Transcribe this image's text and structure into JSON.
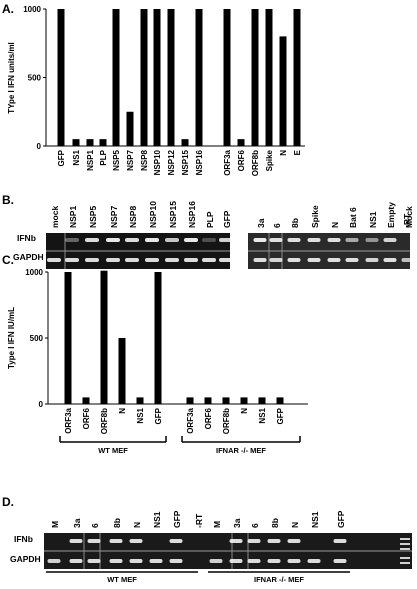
{
  "panels": {
    "A": {
      "label": "A.",
      "chart_data": {
        "type": "bar",
        "ylabel": "TYpe I IFN units/ml",
        "ylim": [
          0,
          1000
        ],
        "yticks": [
          "0",
          "500",
          "1000"
        ],
        "categories": [
          "GFP",
          "NS1",
          "NSP1",
          "PLP",
          "NSP5",
          "NSP7",
          "NSP8",
          "NSP10",
          "NSP12",
          "NSP15",
          "NSP16",
          "ORF3a",
          "ORF6",
          "ORF8b",
          "Spike",
          "N",
          "E"
        ],
        "values": [
          1000,
          50,
          50,
          50,
          1000,
          250,
          1000,
          1000,
          1000,
          50,
          1000,
          1000,
          50,
          1000,
          1000,
          800,
          1000
        ]
      }
    },
    "B": {
      "label": "B.",
      "rows": [
        "IFNb",
        "GAPDH"
      ],
      "left_lanes": [
        "mock",
        "NSP1",
        "NSP5",
        "NSP7",
        "NSP8",
        "NSP10",
        "NSP15",
        "NSP16",
        "PLP",
        "GFP"
      ],
      "right_lanes": [
        "3a",
        "6",
        "8b",
        "Spike",
        "N",
        "Bat 6",
        "NS1",
        "Empty",
        "Mock",
        "-RT"
      ]
    },
    "C": {
      "label": "C.",
      "chart_data": {
        "type": "bar",
        "ylabel": "Type I IFN IU/mL",
        "ylim": [
          0,
          1000
        ],
        "yticks": [
          "0",
          "500",
          "1000"
        ],
        "groups": [
          {
            "name": "WT MEF",
            "categories": [
              "ORF3a",
              "ORF6",
              "ORF8b",
              "N",
              "NS1",
              "GFP"
            ],
            "values": [
              1000,
              50,
              1010,
              500,
              50,
              1000
            ]
          },
          {
            "name": "IFNAR -/- MEF",
            "categories": [
              "ORF3a",
              "ORF6",
              "ORF8b",
              "N",
              "NS1",
              "GFP"
            ],
            "values": [
              50,
              50,
              50,
              50,
              50,
              50
            ]
          }
        ]
      }
    },
    "D": {
      "label": "D.",
      "rows": [
        "IFNb",
        "GAPDH"
      ],
      "lanes": [
        "M",
        "3a",
        "6",
        "8b",
        "N",
        "NS1",
        "GFP",
        "-RT",
        "M",
        "3a",
        "6",
        "8b",
        "N",
        "NS1",
        "GFP"
      ],
      "groups": [
        "WT MEF",
        "IFNAR -/- MEF"
      ]
    }
  }
}
